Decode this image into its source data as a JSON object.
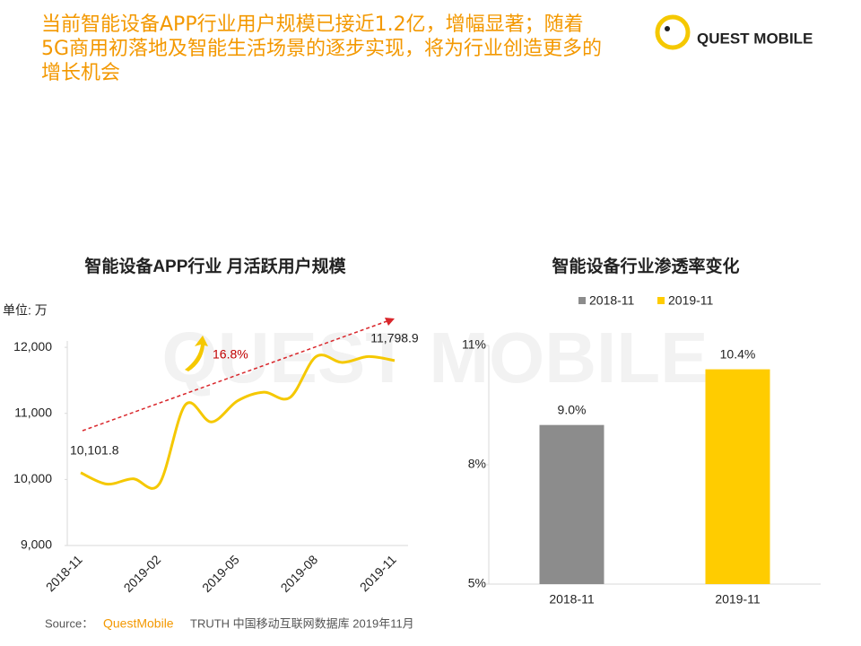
{
  "header": {
    "title_lines": [
      "当前智能设备APP行业用户规模已接近1.2亿，增幅显著；随着",
      "5G商用初落地及智能生活场景的逐步实现，将为行业创造更多的",
      "增长机会"
    ],
    "logo": "QUEST MOBILE"
  },
  "watermark": "QUEST MOBILE",
  "chart_data": [
    {
      "type": "line",
      "title": "智能设备APP行业 月活跃用户规模",
      "ylabel": "单位: 万",
      "categories": [
        "2018-11",
        null,
        null,
        "2019-02",
        null,
        null,
        "2019-05",
        null,
        null,
        "2019-08",
        null,
        null,
        "2019-11"
      ],
      "series": [
        {
          "name": "月活跃用户规模",
          "color": "#f5c800",
          "values": [
            10101.8,
            9930,
            10010,
            9930,
            11130,
            10870,
            11190,
            11320,
            11240,
            11860,
            11770,
            11860,
            11798.9
          ],
          "value_labels": [
            "10,101.8",
            null,
            null,
            null,
            null,
            null,
            null,
            null,
            null,
            null,
            null,
            null,
            "11,798.9"
          ]
        }
      ],
      "ylim": [
        9000,
        12300
      ],
      "yticks": [
        {
          "value": 9000,
          "label": "9,000"
        },
        {
          "value": 10000,
          "label": "10,000"
        },
        {
          "value": 11000,
          "label": "11,000"
        },
        {
          "value": 12000,
          "label": "12,000"
        }
      ],
      "annotation": "16.8%"
    },
    {
      "type": "bar",
      "title": "智能设备行业渗透率变化",
      "categories": [
        "2018-11",
        "2019-11"
      ],
      "series": [
        {
          "name": "2018-11",
          "color": "#8c8c8c",
          "values": [
            9.0,
            null
          ],
          "value_labels": [
            "9.0%",
            null
          ]
        },
        {
          "name": "2019-11",
          "color": "#ffcc00",
          "values": [
            null,
            10.4
          ],
          "value_labels": [
            null,
            "10.4%"
          ]
        }
      ],
      "ylim": [
        5,
        11
      ],
      "yticks": [
        {
          "value": 5,
          "label": "5%"
        },
        {
          "value": 8,
          "label": "8%"
        },
        {
          "value": 11,
          "label": "11%"
        }
      ]
    }
  ],
  "source": {
    "prefix": "Source：",
    "brand": "QuestMobile",
    "text": "TRUTH 中国移动互联网数据库 2019年11月"
  }
}
